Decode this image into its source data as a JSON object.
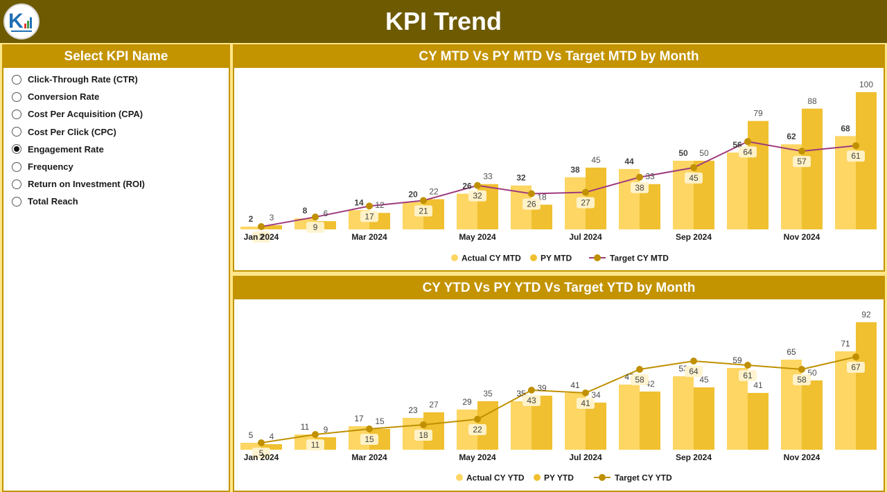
{
  "header": {
    "title": "KPI Trend"
  },
  "colors": {
    "actual": "#fdd663",
    "py": "#f0c030",
    "target_mtd": "#9e3a7e",
    "target_ytd": "#c09000",
    "marker": "#c09000",
    "panel_head": "#c39300",
    "header_bg": "#6e5a00"
  },
  "slicer": {
    "title": "Select KPI Name",
    "items": [
      {
        "label": "Click-Through Rate (CTR)",
        "checked": false
      },
      {
        "label": "Conversion Rate",
        "checked": false
      },
      {
        "label": "Cost Per Acquisition (CPA)",
        "checked": false
      },
      {
        "label": "Cost Per Click (CPC)",
        "checked": false
      },
      {
        "label": "Engagement Rate",
        "checked": true
      },
      {
        "label": "Frequency",
        "checked": false
      },
      {
        "label": "Return on Investment (ROI)",
        "checked": false
      },
      {
        "label": "Total Reach",
        "checked": false
      }
    ]
  },
  "chart_data": [
    {
      "type": "bar",
      "title": "CY MTD Vs PY MTD Vs Target MTD by Month",
      "categories": [
        "Jan 2024",
        "Feb 2024",
        "Mar 2024",
        "Apr 2024",
        "May 2024",
        "Jun 2024",
        "Jul 2024",
        "Aug 2024",
        "Sep 2024",
        "Oct 2024",
        "Nov 2024",
        "Dec 2024"
      ],
      "tick_labels": [
        "Jan 2024",
        "",
        "Mar 2024",
        "",
        "May 2024",
        "",
        "Jul 2024",
        "",
        "Sep 2024",
        "",
        "Nov 2024",
        ""
      ],
      "series": [
        {
          "name": "Actual CY MTD",
          "kind": "bar",
          "values": [
            2,
            8,
            14,
            20,
            26,
            32,
            38,
            44,
            50,
            56,
            62,
            68
          ]
        },
        {
          "name": "PY MTD",
          "kind": "bar",
          "values": [
            3,
            6,
            12,
            22,
            33,
            18,
            45,
            33,
            50,
            79,
            88,
            100
          ]
        },
        {
          "name": "Target CY MTD",
          "kind": "line",
          "values": [
            2,
            9,
            17,
            21,
            32,
            26,
            27,
            38,
            45,
            64,
            57,
            61
          ]
        }
      ],
      "ylim": [
        0,
        100
      ],
      "legend": "bottom"
    },
    {
      "type": "bar",
      "title": "CY YTD Vs PY YTD Vs Target YTD by Month",
      "categories": [
        "Jan 2024",
        "Feb 2024",
        "Mar 2024",
        "Apr 2024",
        "May 2024",
        "Jun 2024",
        "Jul 2024",
        "Aug 2024",
        "Sep 2024",
        "Oct 2024",
        "Nov 2024",
        "Dec 2024"
      ],
      "tick_labels": [
        "Jan 2024",
        "",
        "Mar 2024",
        "",
        "May 2024",
        "",
        "Jul 2024",
        "",
        "Sep 2024",
        "",
        "Nov 2024",
        ""
      ],
      "series": [
        {
          "name": "Actual CY YTD",
          "kind": "bar",
          "values": [
            5,
            11,
            17,
            23,
            29,
            35,
            41,
            47,
            53,
            59,
            65,
            71
          ]
        },
        {
          "name": "PY YTD",
          "kind": "bar",
          "values": [
            4,
            9,
            15,
            27,
            35,
            39,
            34,
            42,
            45,
            41,
            50,
            92
          ]
        },
        {
          "name": "Target CY YTD",
          "kind": "line",
          "values": [
            5,
            11,
            15,
            18,
            22,
            43,
            41,
            58,
            64,
            61,
            58,
            67
          ]
        }
      ],
      "ylim": [
        0,
        92
      ],
      "legend": "bottom"
    }
  ]
}
